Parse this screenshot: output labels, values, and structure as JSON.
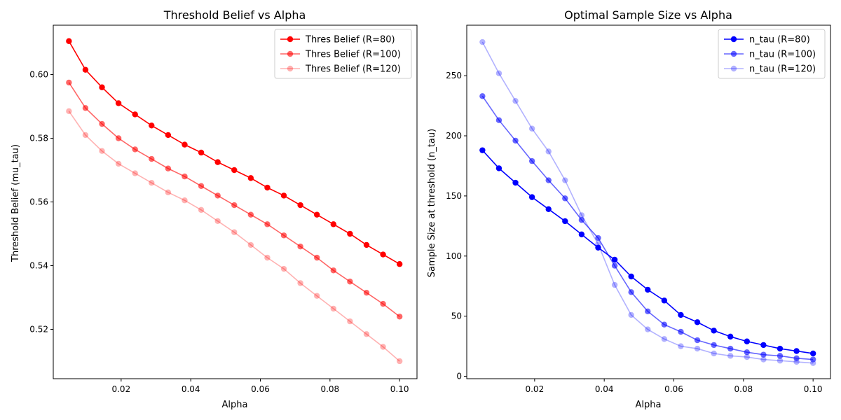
{
  "chart_data": [
    {
      "type": "line",
      "title": "Threshold Belief vs Alpha",
      "xlabel": "Alpha",
      "ylabel": "Threshold Belief (mu_tau)",
      "xlim": [
        0.0005,
        0.105
      ],
      "ylim": [
        0.5045,
        0.6155
      ],
      "xticks": [
        0.02,
        0.04,
        0.06,
        0.08,
        0.1
      ],
      "xtick_labels": [
        "0.02",
        "0.04",
        "0.06",
        "0.08",
        "0.10"
      ],
      "yticks": [
        0.52,
        0.54,
        0.56,
        0.58,
        0.6
      ],
      "ytick_labels": [
        "0.52",
        "0.54",
        "0.56",
        "0.58",
        "0.60"
      ],
      "grid": false,
      "legend_position": "top-right",
      "x": [
        0.005,
        0.00975,
        0.0145,
        0.01925,
        0.024,
        0.02875,
        0.0335,
        0.03825,
        0.043,
        0.04775,
        0.0525,
        0.05725,
        0.062,
        0.06675,
        0.0715,
        0.07625,
        0.081,
        0.08575,
        0.0905,
        0.09525,
        0.1
      ],
      "series": [
        {
          "name": "Thres Belief (R=80)",
          "color": "#ff0000",
          "opacity": 1.0,
          "values": [
            0.6105,
            0.6015,
            0.596,
            0.591,
            0.5875,
            0.584,
            0.581,
            0.578,
            0.5755,
            0.5725,
            0.57,
            0.5675,
            0.5645,
            0.562,
            0.559,
            0.556,
            0.553,
            0.55,
            0.5465,
            0.5435,
            0.5405
          ]
        },
        {
          "name": "Thres Belief (R=100)",
          "color": "#ff0000",
          "opacity": 0.6,
          "values": [
            0.5975,
            0.5895,
            0.5845,
            0.58,
            0.5765,
            0.5735,
            0.5705,
            0.568,
            0.565,
            0.562,
            0.559,
            0.556,
            0.553,
            0.5495,
            0.546,
            0.5425,
            0.5385,
            0.535,
            0.5315,
            0.528,
            0.524
          ]
        },
        {
          "name": "Thres Belief (R=120)",
          "color": "#ff0000",
          "opacity": 0.3,
          "values": [
            0.5885,
            0.581,
            0.576,
            0.572,
            0.569,
            0.566,
            0.563,
            0.5605,
            0.5575,
            0.554,
            0.5505,
            0.5465,
            0.5425,
            0.539,
            0.5345,
            0.5305,
            0.5265,
            0.5225,
            0.5185,
            0.5145,
            0.51
          ]
        }
      ]
    },
    {
      "type": "line",
      "title": "Optimal Sample Size vs Alpha",
      "xlabel": "Alpha",
      "ylabel": "Sample Size at threshold (n_tau)",
      "xlim": [
        0.0005,
        0.105
      ],
      "ylim": [
        -2,
        292
      ],
      "xticks": [
        0.02,
        0.04,
        0.06,
        0.08,
        0.1
      ],
      "xtick_labels": [
        "0.02",
        "0.04",
        "0.06",
        "0.08",
        "0.10"
      ],
      "yticks": [
        0,
        50,
        100,
        150,
        200,
        250
      ],
      "ytick_labels": [
        "0",
        "50",
        "100",
        "150",
        "200",
        "250"
      ],
      "grid": false,
      "legend_position": "top-right",
      "x": [
        0.005,
        0.00975,
        0.0145,
        0.01925,
        0.024,
        0.02875,
        0.0335,
        0.03825,
        0.043,
        0.04775,
        0.0525,
        0.05725,
        0.062,
        0.06675,
        0.0715,
        0.07625,
        0.081,
        0.08575,
        0.0905,
        0.09525,
        0.1
      ],
      "series": [
        {
          "name": "n_tau (R=80)",
          "color": "#0000ff",
          "opacity": 1.0,
          "values": [
            188,
            173,
            161,
            149,
            139,
            129,
            118,
            107,
            97,
            83,
            72,
            63,
            51,
            45,
            38,
            33,
            29,
            26,
            23,
            21,
            19
          ]
        },
        {
          "name": "n_tau (R=100)",
          "color": "#0000ff",
          "opacity": 0.6,
          "values": [
            233,
            213,
            196,
            179,
            163,
            148,
            130,
            115,
            92,
            70,
            54,
            43,
            37,
            30,
            26,
            23,
            20,
            18,
            17,
            15,
            14
          ]
        },
        {
          "name": "n_tau (R=120)",
          "color": "#0000ff",
          "opacity": 0.3,
          "values": [
            278,
            252,
            229,
            206,
            187,
            163,
            134,
            110,
            76,
            51,
            39,
            31,
            25,
            23,
            19,
            17,
            16,
            14,
            13,
            12,
            11
          ]
        }
      ]
    }
  ]
}
